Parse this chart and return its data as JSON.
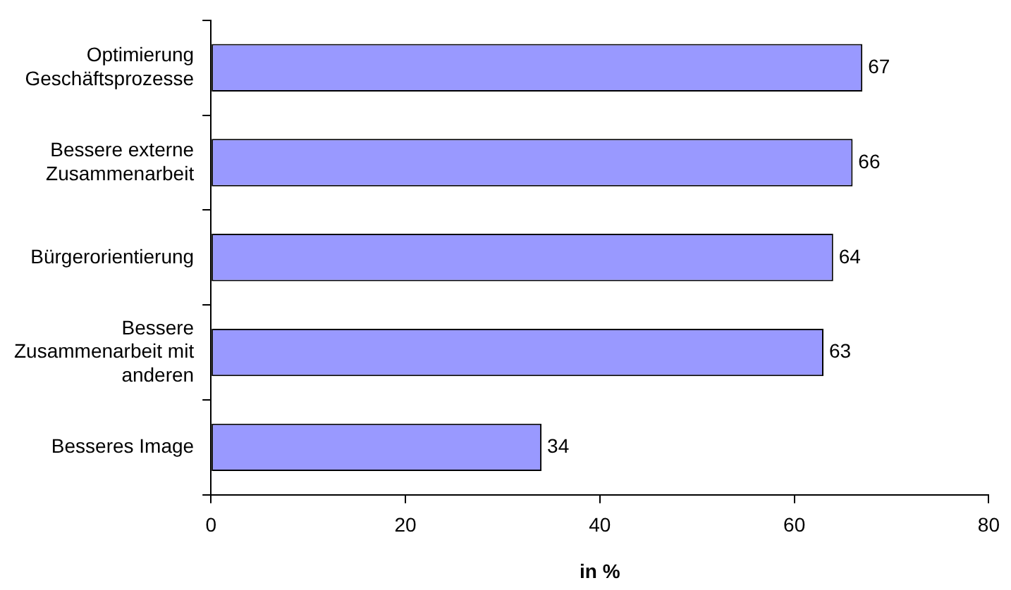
{
  "chart_data": {
    "type": "bar",
    "orientation": "horizontal",
    "xlabel": "in %",
    "categories": [
      "Optimierung Geschäftsprozesse",
      "Bessere externe Zusammenarbeit",
      "Bürgerorientierung",
      "Bessere Zusammenarbeit mit anderen",
      "Besseres Image"
    ],
    "values": [
      67,
      66,
      64,
      63,
      34
    ],
    "color": "#9999ff",
    "xlim": [
      0,
      80
    ],
    "xticks": [
      0,
      20,
      40,
      60,
      80
    ],
    "grid": false,
    "legend": false,
    "data_labels": true
  }
}
